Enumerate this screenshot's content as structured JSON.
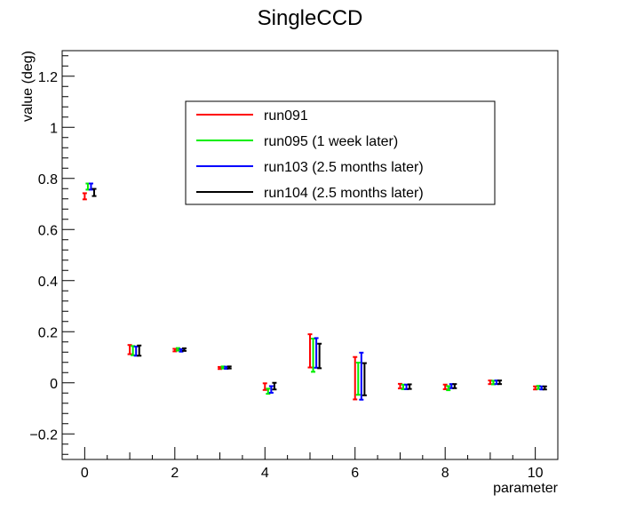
{
  "chart_data": {
    "type": "scatter",
    "subtype": "error-bars",
    "title": "SingleCCD",
    "xlabel": "parameter",
    "ylabel": "value (deg)",
    "xlim": [
      -0.5,
      10.5
    ],
    "ylim": [
      -0.3,
      1.3
    ],
    "x_ticks": [
      0,
      2,
      4,
      6,
      8,
      10
    ],
    "y_ticks": [
      -0.2,
      0,
      0.2,
      0.4,
      0.6,
      0.8,
      1,
      1.2
    ],
    "x_tick_labels": [
      "0",
      "2",
      "4",
      "6",
      "8",
      "10"
    ],
    "y_tick_labels": [
      "−0.2",
      "0",
      "0.2",
      "0.4",
      "0.6",
      "0.8",
      "1",
      "1.2"
    ],
    "legend_position": "top-center",
    "offset_step": 0.07,
    "series": [
      {
        "name": "run091",
        "color": "#ff0000",
        "x": [
          0,
          1,
          2,
          3,
          4,
          5,
          6,
          7,
          8,
          9,
          10
        ],
        "y": [
          0.73,
          0.13,
          0.128,
          0.058,
          -0.015,
          0.125,
          0.018,
          -0.013,
          -0.016,
          0.002,
          -0.02
        ],
        "err": [
          0.012,
          0.018,
          0.005,
          0.004,
          0.013,
          0.065,
          0.083,
          0.009,
          0.009,
          0.007,
          0.006
        ]
      },
      {
        "name": "run095 (1 week later)",
        "color": "#00ee00",
        "x": [
          0,
          1,
          2,
          3,
          4,
          5,
          6,
          7,
          8,
          9,
          10
        ],
        "y": [
          0.768,
          0.126,
          0.131,
          0.06,
          -0.033,
          0.108,
          0.016,
          -0.016,
          -0.021,
          0.001,
          -0.018
        ],
        "err": [
          0.012,
          0.018,
          0.005,
          0.004,
          0.01,
          0.065,
          0.063,
          0.009,
          0.008,
          0.007,
          0.006
        ]
      },
      {
        "name": "run103 (2.5 months later)",
        "color": "#0000ff",
        "x": [
          0,
          1,
          2,
          3,
          4,
          5,
          6,
          7,
          8,
          9,
          10
        ],
        "y": [
          0.768,
          0.124,
          0.127,
          0.059,
          -0.026,
          0.117,
          0.026,
          -0.016,
          -0.013,
          0.002,
          -0.02
        ],
        "err": [
          0.012,
          0.018,
          0.005,
          0.004,
          0.013,
          0.058,
          0.092,
          0.009,
          0.008,
          0.007,
          0.006
        ]
      },
      {
        "name": "run104 (2.5 months later)",
        "color": "#000000",
        "x": [
          0,
          1,
          2,
          3,
          4,
          5,
          6,
          7,
          8,
          9,
          10
        ],
        "y": [
          0.745,
          0.126,
          0.13,
          0.06,
          -0.013,
          0.105,
          0.014,
          -0.015,
          -0.013,
          0.002,
          -0.02
        ],
        "err": [
          0.014,
          0.02,
          0.005,
          0.004,
          0.013,
          0.048,
          0.063,
          0.009,
          0.008,
          0.007,
          0.006
        ]
      }
    ]
  }
}
